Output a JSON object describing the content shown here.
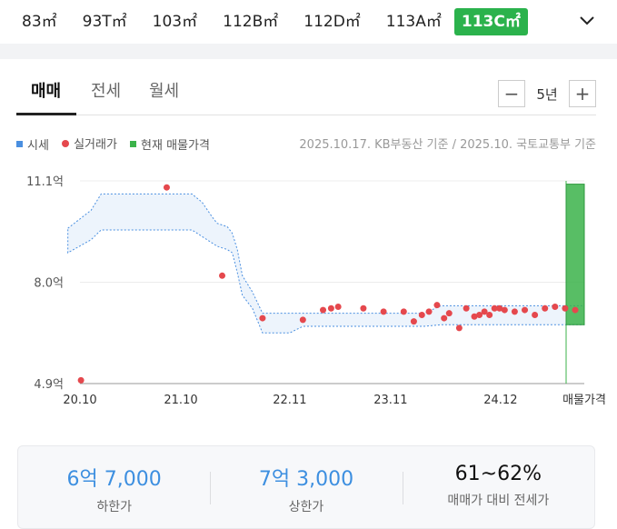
{
  "area_tabs": [
    "83㎡",
    "93T㎡",
    "103㎡",
    "112B㎡",
    "112D㎡",
    "113A㎡",
    "113C㎡"
  ],
  "area_active": "113C㎡",
  "deal_tabs": [
    "매매",
    "전세",
    "월세"
  ],
  "period": {
    "minus": "−",
    "label": "5년",
    "plus": "+"
  },
  "legend": {
    "price": "시세",
    "actual": "실거래가",
    "listing": "현재 매물가격"
  },
  "basis": "2025.10.17. KB부동산 기준 / 2025.10. 국토교통부 기준",
  "colors": {
    "price": "#4a8fe0",
    "actual": "#e5484d",
    "listing": "#3bb34a",
    "accent": "#2bb24c"
  },
  "chart_data": {
    "type": "scatter",
    "y_ticks": [
      "11.1억",
      "8.0억",
      "4.9억"
    ],
    "y_tick_values": [
      11.1,
      8.0,
      4.9
    ],
    "ylim": [
      4.9,
      11.1
    ],
    "x_ticks": [
      "20.10",
      "21.10",
      "22.11",
      "23.11",
      "24.12",
      "매물가격"
    ],
    "x_tick_values": [
      2020.79,
      2021.79,
      2022.87,
      2023.87,
      2024.96
    ],
    "xlim": [
      2020.79,
      2025.79
    ],
    "price_band": {
      "x": [
        2020.67,
        2020.9,
        2021.0,
        2021.1,
        2021.3,
        2021.5,
        2021.7,
        2021.9,
        2022.0,
        2022.1,
        2022.15,
        2022.25,
        2022.3,
        2022.35,
        2022.4,
        2022.5,
        2022.6,
        2022.75,
        2022.87,
        2023.0,
        2023.2,
        2023.4,
        2023.6,
        2023.8,
        2024.0,
        2024.2,
        2024.37,
        2024.6,
        2024.8,
        2025.0,
        2025.2,
        2025.4,
        2025.79
      ],
      "upper": [
        9.65,
        10.2,
        10.7,
        10.7,
        10.7,
        10.7,
        10.7,
        10.7,
        10.45,
        10.0,
        9.8,
        9.7,
        9.5,
        9.0,
        8.2,
        7.7,
        7.05,
        7.05,
        7.05,
        7.05,
        7.05,
        7.05,
        7.05,
        7.05,
        7.05,
        7.05,
        7.28,
        7.28,
        7.28,
        7.28,
        7.28,
        7.28,
        7.28
      ],
      "lower": [
        8.9,
        9.3,
        9.6,
        9.6,
        9.6,
        9.6,
        9.6,
        9.6,
        9.4,
        9.2,
        9.1,
        9.0,
        8.9,
        8.3,
        7.6,
        7.2,
        6.45,
        6.45,
        6.45,
        6.65,
        6.65,
        6.65,
        6.65,
        6.65,
        6.65,
        6.65,
        6.7,
        6.7,
        6.7,
        6.7,
        6.7,
        6.7,
        6.7
      ]
    },
    "actual_points": {
      "x": [
        2020.8,
        2021.65,
        2022.2,
        2022.6,
        2023.0,
        2023.2,
        2023.28,
        2023.35,
        2023.6,
        2023.8,
        2024.0,
        2024.1,
        2024.18,
        2024.25,
        2024.33,
        2024.4,
        2024.45,
        2024.55,
        2024.62,
        2024.7,
        2024.75,
        2024.8,
        2024.85,
        2024.9,
        2024.95,
        2025.0,
        2025.1,
        2025.2,
        2025.3,
        2025.4,
        2025.5,
        2025.6,
        2025.7
      ],
      "y": [
        5.0,
        10.9,
        8.2,
        6.9,
        6.85,
        7.15,
        7.2,
        7.25,
        7.2,
        7.1,
        7.1,
        6.8,
        7.0,
        7.1,
        7.3,
        6.9,
        7.05,
        6.6,
        7.2,
        6.95,
        7.0,
        7.1,
        7.0,
        7.2,
        7.2,
        7.15,
        7.1,
        7.15,
        7.0,
        7.2,
        7.25,
        7.2,
        7.15
      ]
    },
    "listing_range": [
      6.7,
      11.0
    ]
  },
  "summary": [
    {
      "value": "6억 7,000",
      "label": "하한가"
    },
    {
      "value": "7억 3,000",
      "label": "상한가"
    },
    {
      "value": "61~62%",
      "label": "매매가 대비 전세가"
    }
  ]
}
